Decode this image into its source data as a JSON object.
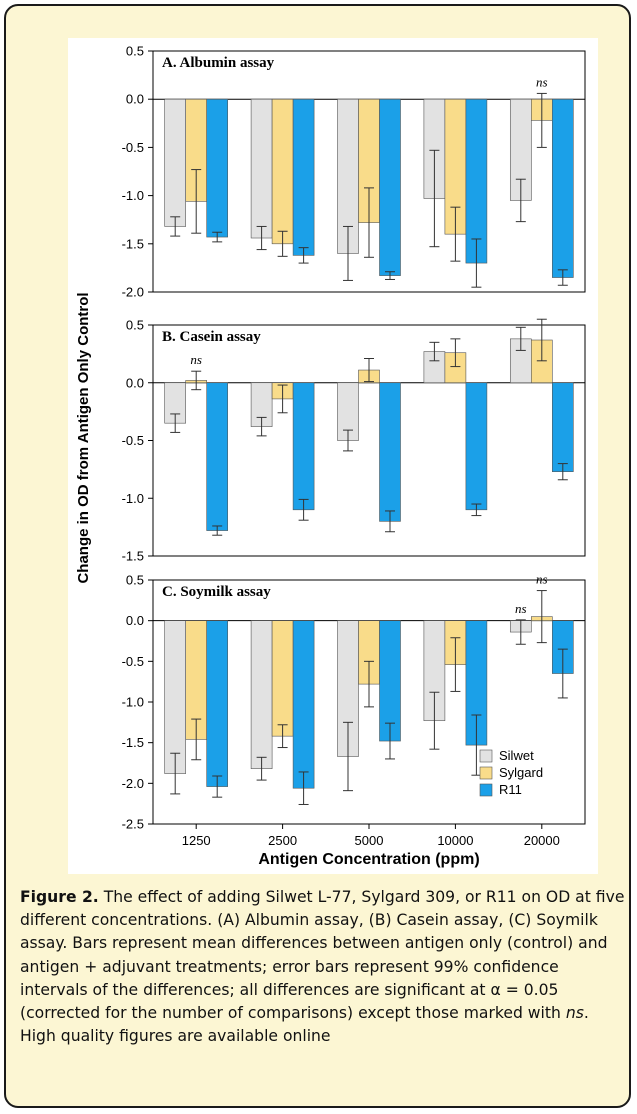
{
  "chart_data": {
    "type": "bar",
    "xlabel": "Antigen Concentration (ppm)",
    "ylabel": "Change in OD from Antigen Only Control",
    "categories": [
      "1250",
      "2500",
      "5000",
      "10000",
      "20000"
    ],
    "series_names": [
      "Silwet",
      "Sylgard",
      "R11"
    ],
    "colors": {
      "Silwet": "#e2e2e2",
      "Sylgard": "#f9dc8a",
      "R11": "#1ba0e8"
    },
    "legend_position": "bottom-right",
    "grid": false,
    "panels": [
      {
        "title": "A. Albumin assay",
        "ylim": [
          -2.0,
          0.5
        ],
        "yticks": [
          "0.5",
          "0.0",
          "-0.5",
          "-1.0",
          "-1.5",
          "-2.0"
        ],
        "series": [
          {
            "name": "Silwet",
            "values": [
              -1.32,
              -1.44,
              -1.6,
              -1.03,
              -1.05
            ],
            "err": [
              0.1,
              0.12,
              0.28,
              0.5,
              0.22
            ]
          },
          {
            "name": "Sylgard",
            "values": [
              -1.06,
              -1.5,
              -1.28,
              -1.4,
              -0.22
            ],
            "err": [
              0.33,
              0.13,
              0.36,
              0.28,
              0.28
            ]
          },
          {
            "name": "R11",
            "values": [
              -1.43,
              -1.62,
              -1.83,
              -1.7,
              -1.85
            ],
            "err": [
              0.05,
              0.08,
              0.04,
              0.25,
              0.08
            ]
          }
        ],
        "annotations": [
          {
            "category_index": 4,
            "series_index": 1,
            "text": "ns"
          }
        ]
      },
      {
        "title": "B. Casein assay",
        "ylim": [
          -1.5,
          0.5
        ],
        "yticks": [
          "0.5",
          "0.0",
          "-0.5",
          "-1.0",
          "-1.5"
        ],
        "series": [
          {
            "name": "Silwet",
            "values": [
              -0.35,
              -0.38,
              -0.5,
              0.27,
              0.38
            ],
            "err": [
              0.08,
              0.08,
              0.09,
              0.08,
              0.1
            ]
          },
          {
            "name": "Sylgard",
            "values": [
              0.02,
              -0.14,
              0.11,
              0.26,
              0.37
            ],
            "err": [
              0.08,
              0.12,
              0.1,
              0.12,
              0.18
            ]
          },
          {
            "name": "R11",
            "values": [
              -1.28,
              -1.1,
              -1.2,
              -1.1,
              -0.77
            ],
            "err": [
              0.04,
              0.09,
              0.09,
              0.05,
              0.07
            ]
          }
        ],
        "annotations": [
          {
            "category_index": 0,
            "series_index": 1,
            "text": "ns"
          }
        ]
      },
      {
        "title": "C. Soymilk assay",
        "ylim": [
          -2.5,
          0.5
        ],
        "yticks": [
          "0.5",
          "0.0",
          "-0.5",
          "-1.0",
          "-1.5",
          "-2.0",
          "-2.5"
        ],
        "series": [
          {
            "name": "Silwet",
            "values": [
              -1.88,
              -1.82,
              -1.67,
              -1.23,
              -0.14
            ],
            "err": [
              0.25,
              0.14,
              0.42,
              0.35,
              0.15
            ]
          },
          {
            "name": "Sylgard",
            "values": [
              -1.46,
              -1.42,
              -0.78,
              -0.54,
              0.05
            ],
            "err": [
              0.25,
              0.14,
              0.28,
              0.33,
              0.32
            ]
          },
          {
            "name": "R11",
            "values": [
              -2.04,
              -2.06,
              -1.48,
              -1.53,
              -0.65
            ],
            "err": [
              0.13,
              0.2,
              0.22,
              0.37,
              0.3
            ]
          }
        ],
        "annotations": [
          {
            "category_index": 4,
            "series_index": 0,
            "text": "ns"
          },
          {
            "category_index": 4,
            "series_index": 1,
            "text": "ns"
          }
        ]
      }
    ]
  },
  "caption": {
    "label": "Figure 2.",
    "text_1": " The effect of adding Silwet L-77, Sylgard 309, or R11 on OD at five different concentrations. (A) Albumin assay, (B) Casein assay, (C) Soymilk assay. Bars represent mean differences between antigen only (control) and antigen + adjuvant treatments; error bars represent 99% confidence intervals of the differences; all differences are significant at ",
    "alpha": "α",
    "text_2": " = 0.05 (corrected for the number of comparisons) except those marked with ",
    "ns": "ns",
    "text_3": ". High quality figures are available online"
  }
}
